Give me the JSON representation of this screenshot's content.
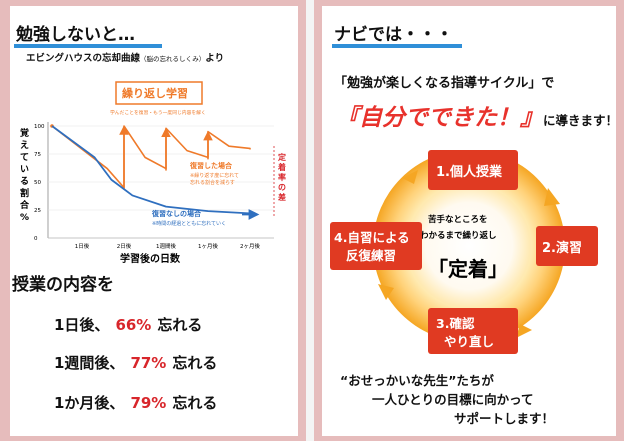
{
  "left": {
    "heading": "勉強しないと…",
    "chart_title": "エビングハウスの忘却曲線",
    "chart_title_small": "（脳の忘れるしくみ）",
    "chart_title_suffix": "より",
    "ylabel": "覚えている割合%",
    "xlabel": "学習後の日数",
    "callout_title": "繰り返し学習",
    "callout_sub": "学んだことを復習・もう一度同じ内容を解く",
    "review_label": "復習した場合",
    "review_sub1": "※繰り返す度に忘れて",
    "review_sub2": "忘れる割合を減らす",
    "noreview_label": "復習なしの場合",
    "noreview_sub": "※時間の経過とともに忘れていく",
    "gap_label": "定着率の差",
    "content_title": "授業の内容を",
    "rows": [
      {
        "when": "1日後、",
        "pct": "66%",
        "verb": "忘れる"
      },
      {
        "when": "1週間後、",
        "pct": "77%",
        "verb": "忘れる"
      },
      {
        "when": "1か月後、",
        "pct": "79%",
        "verb": "忘れる"
      }
    ]
  },
  "right": {
    "heading": "ナビでは・・・",
    "subtitle": "「勉強が楽しくなる指導サイクル」で",
    "big_red": "『自分でできた！』",
    "big_rest": "に導きます！",
    "cycle": {
      "step1": "1.個人授業",
      "step2": "2.演習",
      "step3a": "3.確認",
      "step3b": "やり直し",
      "step4a": "4.自習による",
      "step4b": "反復練習",
      "center_line1": "苦手なところを",
      "center_line2": "わかるまで繰り返し",
      "center_main": "「定着」"
    },
    "bottom_line1": "“おせっかいな先生”たちが",
    "bottom_line2": "一人ひとりの目標に向かって",
    "bottom_line3": "サポートします！"
  },
  "chart_data": {
    "type": "line",
    "title": "エビングハウスの忘却曲線",
    "xlabel": "学習後の日数",
    "ylabel": "覚えている割合%",
    "ylim": [
      0,
      100
    ],
    "yticks": [
      "0",
      "25",
      "50",
      "75",
      "100"
    ],
    "categories": [
      "1日後",
      "2日後",
      "1週間後",
      "1ヶ月後",
      "2ヶ月後"
    ],
    "series": [
      {
        "name": "復習した場合",
        "color": "#ef7a2a",
        "points": [
          [
            0,
            100
          ],
          [
            0.6,
            62
          ],
          [
            1,
            45
          ],
          [
            1,
            100
          ],
          [
            1.5,
            72
          ],
          [
            2,
            62
          ],
          [
            2,
            98
          ],
          [
            2.5,
            78
          ],
          [
            3,
            72
          ],
          [
            3,
            95
          ],
          [
            3.5,
            82
          ],
          [
            4,
            80
          ],
          [
            4.5,
            79
          ]
        ]
      },
      {
        "name": "復習なしの場合",
        "color": "#2f6fbf",
        "points": [
          [
            0,
            100
          ],
          [
            0.3,
            72
          ],
          [
            0.7,
            52
          ],
          [
            1.2,
            38
          ],
          [
            2,
            28
          ],
          [
            3,
            24
          ],
          [
            4,
            22
          ],
          [
            4.5,
            21
          ]
        ]
      }
    ]
  },
  "colors": {
    "frame": "#e6bcbc",
    "accent_blue": "#2f8fd8",
    "red": "#d8262b",
    "orange": "#ef7a2a",
    "cycle_box": "#e03a22"
  }
}
